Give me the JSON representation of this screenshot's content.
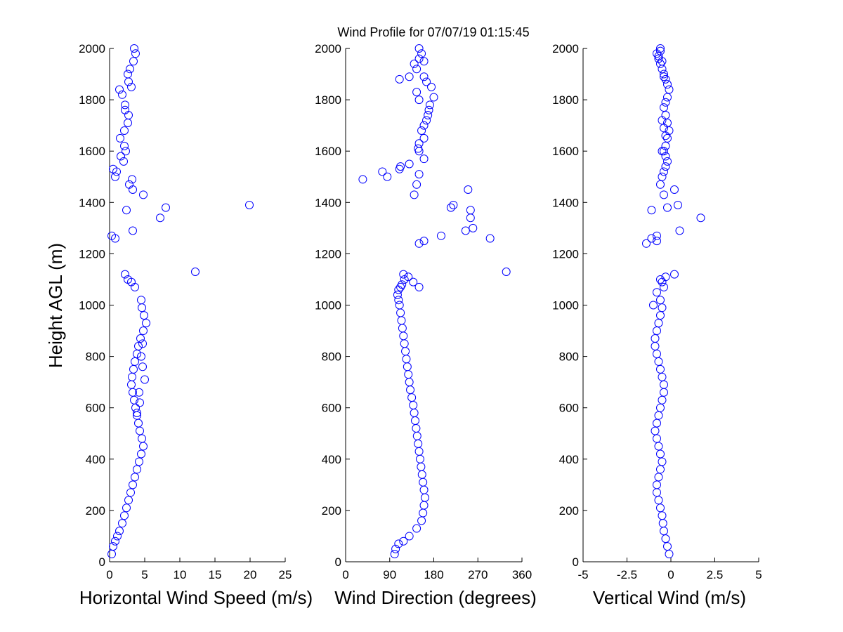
{
  "title": "Wind Profile for  07/07/19 01:15:45",
  "colors": {
    "marker": "#0000ff",
    "axis": "#000000",
    "background": "#ffffff"
  },
  "chart_data": [
    {
      "type": "scatter",
      "xlabel": "Horizontal Wind Speed (m/s)",
      "ylabel": "Height AGL (m)",
      "xlim": [
        0,
        25
      ],
      "ylim": [
        0,
        2000
      ],
      "xticks": [
        "0",
        "5",
        "10",
        "15",
        "20",
        "25"
      ],
      "yticks": [
        "0",
        "200",
        "400",
        "600",
        "800",
        "1000",
        "1200",
        "1400",
        "1600",
        "1800",
        "2000"
      ],
      "marker": "open-circle",
      "x": [
        0.3,
        0.5,
        0.8,
        1.1,
        1.4,
        1.8,
        2.1,
        2.4,
        2.7,
        3.0,
        3.3,
        3.6,
        3.9,
        4.2,
        4.5,
        4.8,
        4.6,
        4.3,
        4.1,
        3.9,
        3.7,
        3.5,
        3.3,
        3.1,
        3.2,
        3.4,
        3.6,
        3.9,
        4.1,
        4.4,
        4.8,
        5.2,
        4.9,
        4.6,
        4.5,
        4.7,
        5.0,
        4.7,
        4.5,
        4.3,
        4.2,
        3.9,
        3.6,
        3.1,
        2.6,
        2.2,
        12.2,
        0.8,
        0.3,
        3.3,
        7.2,
        2.4,
        8.0,
        19.9,
        4.8,
        3.3,
        2.8,
        0.8,
        1.0,
        0.5,
        2.0,
        1.6,
        2.3,
        2.1,
        1.5,
        2.1,
        2.6,
        2.7,
        2.2,
        1.8,
        3.1,
        2.7,
        1.4,
        2.6,
        2.2,
        2.9,
        3.4,
        3.7,
        3.5,
        3.2
      ],
      "y": [
        30,
        60,
        80,
        100,
        120,
        150,
        180,
        210,
        240,
        270,
        300,
        330,
        360,
        390,
        420,
        450,
        480,
        510,
        540,
        570,
        600,
        630,
        660,
        690,
        720,
        750,
        780,
        810,
        840,
        870,
        900,
        930,
        960,
        990,
        1020,
        850,
        710,
        760,
        800,
        620,
        660,
        580,
        1070,
        1090,
        1100,
        1120,
        1130,
        1260,
        1270,
        1290,
        1340,
        1370,
        1380,
        1390,
        1430,
        1450,
        1470,
        1500,
        1520,
        1530,
        1560,
        1580,
        1600,
        1620,
        1650,
        1680,
        1710,
        1740,
        1780,
        1820,
        1850,
        1870,
        1840,
        1900,
        1760,
        1920,
        1950,
        1980,
        2000,
        1490
      ],
      "cx_unused": null
    },
    {
      "type": "scatter",
      "xlabel": "Wind Direction (degrees)",
      "ylabel": "",
      "xlim": [
        0,
        360
      ],
      "ylim": [
        0,
        2000
      ],
      "xticks": [
        "0",
        "90",
        "180",
        "270",
        "360"
      ],
      "yticks": [
        "0",
        "200",
        "400",
        "600",
        "800",
        "1000",
        "1200",
        "1400",
        "1600",
        "1800",
        "2000"
      ],
      "marker": "open-circle",
      "x": [
        100,
        102,
        108,
        118,
        130,
        145,
        155,
        158,
        160,
        162,
        160,
        158,
        156,
        154,
        152,
        150,
        148,
        146,
        144,
        142,
        140,
        138,
        135,
        132,
        130,
        128,
        126,
        124,
        122,
        120,
        118,
        116,
        114,
        112,
        110,
        108,
        106,
        108,
        112,
        115,
        120,
        128,
        138,
        150,
        118,
        328,
        250,
        255,
        255,
        245,
        295,
        195,
        160,
        150,
        140,
        220,
        215,
        260,
        145,
        150,
        112,
        110,
        35,
        75,
        85,
        160,
        130,
        150,
        148,
        150,
        160,
        155,
        160,
        165,
        168,
        170,
        172,
        150,
        145,
        180,
        175,
        165,
        160,
        110,
        130,
        150,
        145,
        140,
        160,
        155,
        150
      ],
      "y": [
        30,
        50,
        70,
        80,
        100,
        130,
        160,
        190,
        220,
        250,
        280,
        310,
        340,
        370,
        400,
        430,
        460,
        490,
        520,
        550,
        580,
        610,
        640,
        670,
        700,
        730,
        760,
        790,
        820,
        850,
        880,
        910,
        940,
        970,
        1000,
        1020,
        1040,
        1060,
        1070,
        1080,
        1100,
        1110,
        1090,
        1070,
        1120,
        1130,
        1450,
        1370,
        1340,
        1290,
        1260,
        1270,
        1250,
        1240,
        1430,
        1390,
        1380,
        1300,
        1470,
        1510,
        1540,
        1530,
        1490,
        1520,
        1500,
        1570,
        1550,
        1600,
        1610,
        1630,
        1650,
        1680,
        1700,
        1720,
        1740,
        1760,
        1780,
        1800,
        1830,
        1810,
        1850,
        1870,
        1890,
        1880,
        1890,
        1960,
        1920,
        1940,
        1950,
        1980,
        2000
      ],
      "cx_unused": null
    },
    {
      "type": "scatter",
      "xlabel": "Vertical Wind (m/s)",
      "ylabel": "",
      "xlim": [
        -5,
        5
      ],
      "ylim": [
        0,
        2000
      ],
      "xticks": [
        "-5",
        "-2.5",
        "0",
        "2.5",
        "5"
      ],
      "yticks": [
        "0",
        "200",
        "400",
        "600",
        "800",
        "1000",
        "1200",
        "1400",
        "1600",
        "1800",
        "2000"
      ],
      "marker": "open-circle",
      "x": [
        -0.1,
        -0.2,
        -0.3,
        -0.4,
        -0.45,
        -0.5,
        -0.6,
        -0.7,
        -0.8,
        -0.8,
        -0.7,
        -0.6,
        -0.5,
        -0.6,
        -0.7,
        -0.8,
        -0.9,
        -0.8,
        -0.7,
        -0.6,
        -0.5,
        -0.4,
        -0.4,
        -0.5,
        -0.6,
        -0.7,
        -0.8,
        -0.9,
        -0.9,
        -0.8,
        -0.7,
        -0.6,
        -0.5,
        -0.6,
        -0.8,
        -0.4,
        -0.5,
        -0.6,
        -0.3,
        0.2,
        -0.8,
        -1.4,
        -1.1,
        -0.8,
        -1.0,
        0.5,
        1.7,
        -1.1,
        -0.2,
        0.4,
        -0.4,
        0.2,
        -0.6,
        -0.5,
        -0.4,
        -0.3,
        -0.2,
        -0.3,
        -0.4,
        -0.3,
        -0.2,
        -0.1,
        -0.2,
        -0.3,
        -0.4,
        -0.3,
        -0.2,
        -0.1,
        -0.2,
        -0.3,
        -0.4,
        -0.5,
        -0.6,
        -0.7,
        -0.8,
        -0.6,
        -0.4,
        -0.5,
        -0.7,
        -0.6,
        -0.5,
        -0.4,
        -0.3,
        -0.5
      ],
      "y": [
        30,
        60,
        90,
        120,
        150,
        180,
        210,
        240,
        270,
        300,
        330,
        360,
        390,
        420,
        450,
        480,
        510,
        540,
        570,
        600,
        630,
        660,
        690,
        720,
        750,
        780,
        810,
        840,
        870,
        900,
        930,
        960,
        990,
        1020,
        1050,
        1070,
        1090,
        1100,
        1110,
        1120,
        1250,
        1240,
        1260,
        1270,
        1000,
        1290,
        1340,
        1370,
        1380,
        1390,
        1430,
        1450,
        1470,
        1500,
        1520,
        1540,
        1560,
        1580,
        1600,
        1620,
        1650,
        1680,
        1710,
        1740,
        1770,
        1790,
        1810,
        1840,
        1860,
        1880,
        1900,
        1920,
        1940,
        1960,
        1980,
        2000,
        1890,
        1950,
        1970,
        1990,
        1720,
        1690,
        1660,
        1600
      ],
      "cx_unused": null
    }
  ]
}
